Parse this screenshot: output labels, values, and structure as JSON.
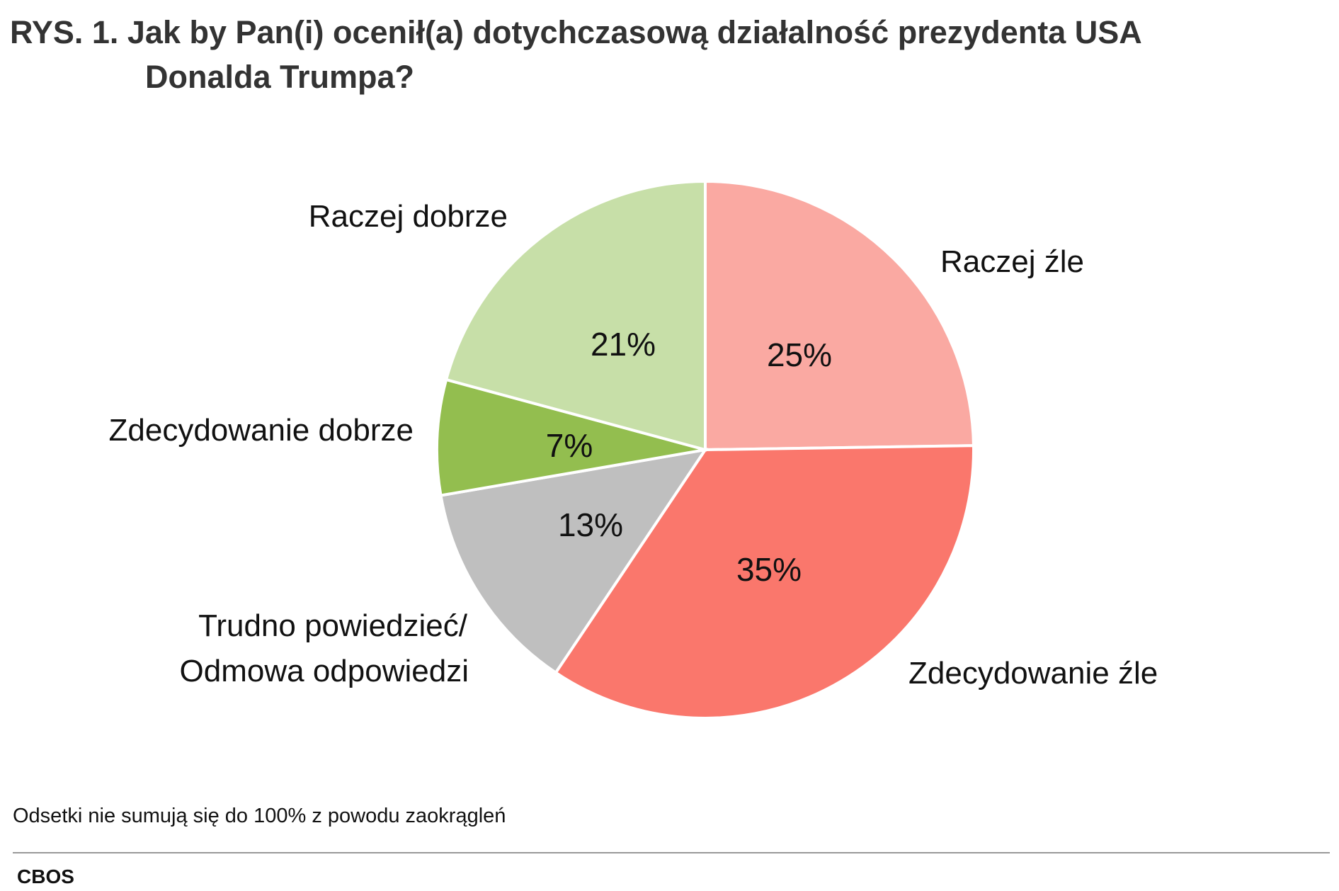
{
  "title": {
    "line1": "RYS. 1. Jak by Pan(i) ocenił(a) dotychczasową działalność prezydenta USA",
    "line2": "Donalda Trumpa?"
  },
  "chart_data": {
    "type": "pie",
    "start": "12 o'clock",
    "direction": "clockwise",
    "slices": [
      {
        "label": "Raczej źle",
        "value": 25,
        "value_label": "25%",
        "color": "#FAA9A2"
      },
      {
        "label": "Zdecydowanie źle",
        "value": 35,
        "value_label": "35%",
        "color": "#FA776C"
      },
      {
        "label": "Trudno powiedzieć/",
        "label2": "Odmowa odpowiedzi",
        "value": 13,
        "value_label": "13%",
        "color": "#BFBFBF"
      },
      {
        "label": "Zdecydowanie dobrze",
        "value": 7,
        "value_label": "7%",
        "color": "#93BE4F"
      },
      {
        "label": "Raczej dobrze",
        "value": 21,
        "value_label": "21%",
        "color": "#C7DFA8"
      }
    ]
  },
  "footnote": "Odsetki nie sumują się do 100% z powodu zaokrągleń",
  "source": "CBOS"
}
